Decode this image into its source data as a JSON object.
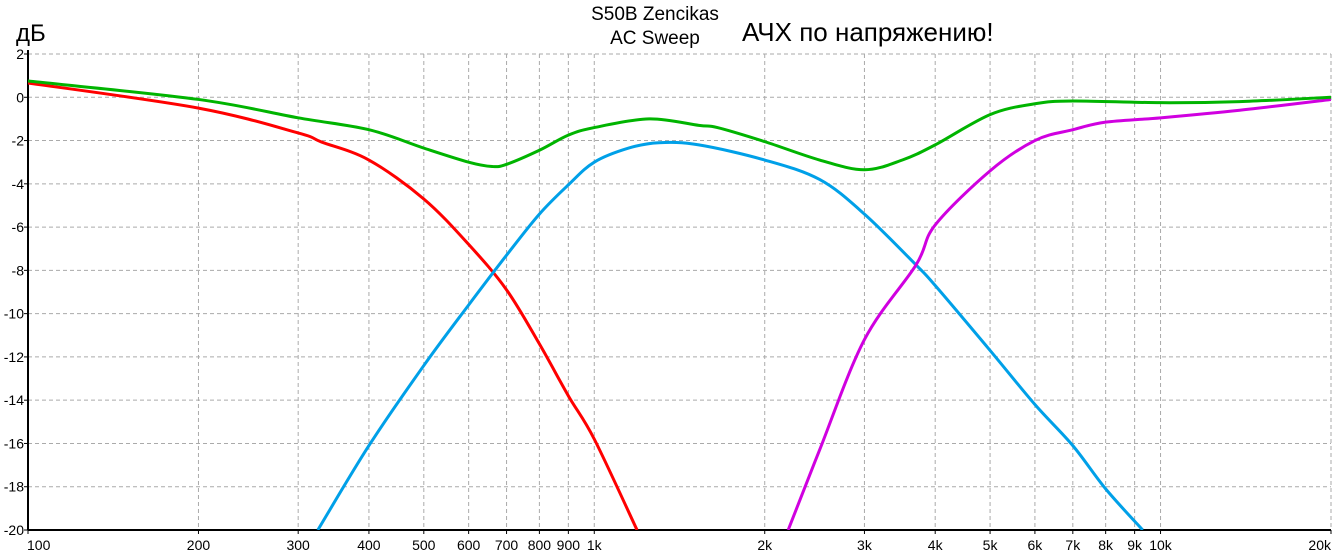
{
  "chart_data": {
    "type": "line",
    "title": "S50B Zencikas",
    "subtitle": "AC Sweep",
    "annotation": "АЧХ по напряжению!",
    "ylabel": "дБ",
    "xlabel": "",
    "xscale": "log",
    "xlim": [
      100,
      20000
    ],
    "ylim": [
      -20,
      2
    ],
    "grid": true,
    "yticks": [
      2,
      0,
      -2,
      -4,
      -6,
      -8,
      -10,
      -12,
      -14,
      -16,
      -18,
      -20
    ],
    "xticks": [
      {
        "v": 100,
        "label": "100"
      },
      {
        "v": 200,
        "label": "200"
      },
      {
        "v": 300,
        "label": "300"
      },
      {
        "v": 400,
        "label": "400"
      },
      {
        "v": 500,
        "label": "500"
      },
      {
        "v": 600,
        "label": "600"
      },
      {
        "v": 700,
        "label": "700"
      },
      {
        "v": 800,
        "label": "800"
      },
      {
        "v": 900,
        "label": "900"
      },
      {
        "v": 1000,
        "label": "1k"
      },
      {
        "v": 2000,
        "label": "2k"
      },
      {
        "v": 3000,
        "label": "3k"
      },
      {
        "v": 4000,
        "label": "4k"
      },
      {
        "v": 5000,
        "label": "5k"
      },
      {
        "v": 6000,
        "label": "6k"
      },
      {
        "v": 7000,
        "label": "7k"
      },
      {
        "v": 8000,
        "label": "8k"
      },
      {
        "v": 9000,
        "label": "9k"
      },
      {
        "v": 10000,
        "label": "10k"
      },
      {
        "v": 20000,
        "label": "20k"
      }
    ],
    "series": [
      {
        "color": "#ff0000",
        "x": [
          100,
          200,
          300,
          330,
          400,
          500,
          600,
          700,
          800,
          900,
          1000,
          1190
        ],
        "y": [
          0.66,
          -0.5,
          -1.65,
          -2.07,
          -2.9,
          -4.7,
          -6.8,
          -8.9,
          -11.4,
          -13.8,
          -15.8,
          -20
        ]
      },
      {
        "color": "#00a0e8",
        "x": [
          325,
          400,
          500,
          600,
          700,
          800,
          900,
          1000,
          1150,
          1300,
          1530,
          2000,
          2500,
          3000,
          3700,
          4000,
          5000,
          6000,
          7000,
          8000,
          9300
        ],
        "y": [
          -20,
          -16.1,
          -12.4,
          -9.6,
          -7.3,
          -5.4,
          -4.05,
          -3,
          -2.35,
          -2.1,
          -2.2,
          -2.9,
          -3.8,
          -5.4,
          -7.75,
          -8.7,
          -11.7,
          -14.2,
          -16.1,
          -18.1,
          -20
        ]
      },
      {
        "color": "#d000e0",
        "x": [
          2200,
          2500,
          3000,
          3700,
          4000,
          5000,
          6000,
          7000,
          8000,
          10000,
          13800,
          20000
        ],
        "y": [
          -20,
          -16.3,
          -11.2,
          -7.75,
          -5.9,
          -3.4,
          -2.0,
          -1.5,
          -1.15,
          -0.95,
          -0.6,
          -0.1
        ]
      },
      {
        "color": "#00b400",
        "x": [
          100,
          200,
          300,
          400,
          500,
          600,
          660,
          700,
          800,
          900,
          1000,
          1250,
          1530,
          1650,
          2000,
          2500,
          3000,
          3500,
          4000,
          5000,
          6000,
          7000,
          10000,
          13800,
          20000
        ],
        "y": [
          0.75,
          -0.1,
          -0.95,
          -1.5,
          -2.35,
          -3,
          -3.2,
          -3.1,
          -2.45,
          -1.75,
          -1.4,
          -1.0,
          -1.3,
          -1.4,
          -2.05,
          -2.9,
          -3.35,
          -2.9,
          -2.2,
          -0.8,
          -0.3,
          -0.17,
          -0.25,
          -0.2,
          0
        ]
      }
    ]
  }
}
